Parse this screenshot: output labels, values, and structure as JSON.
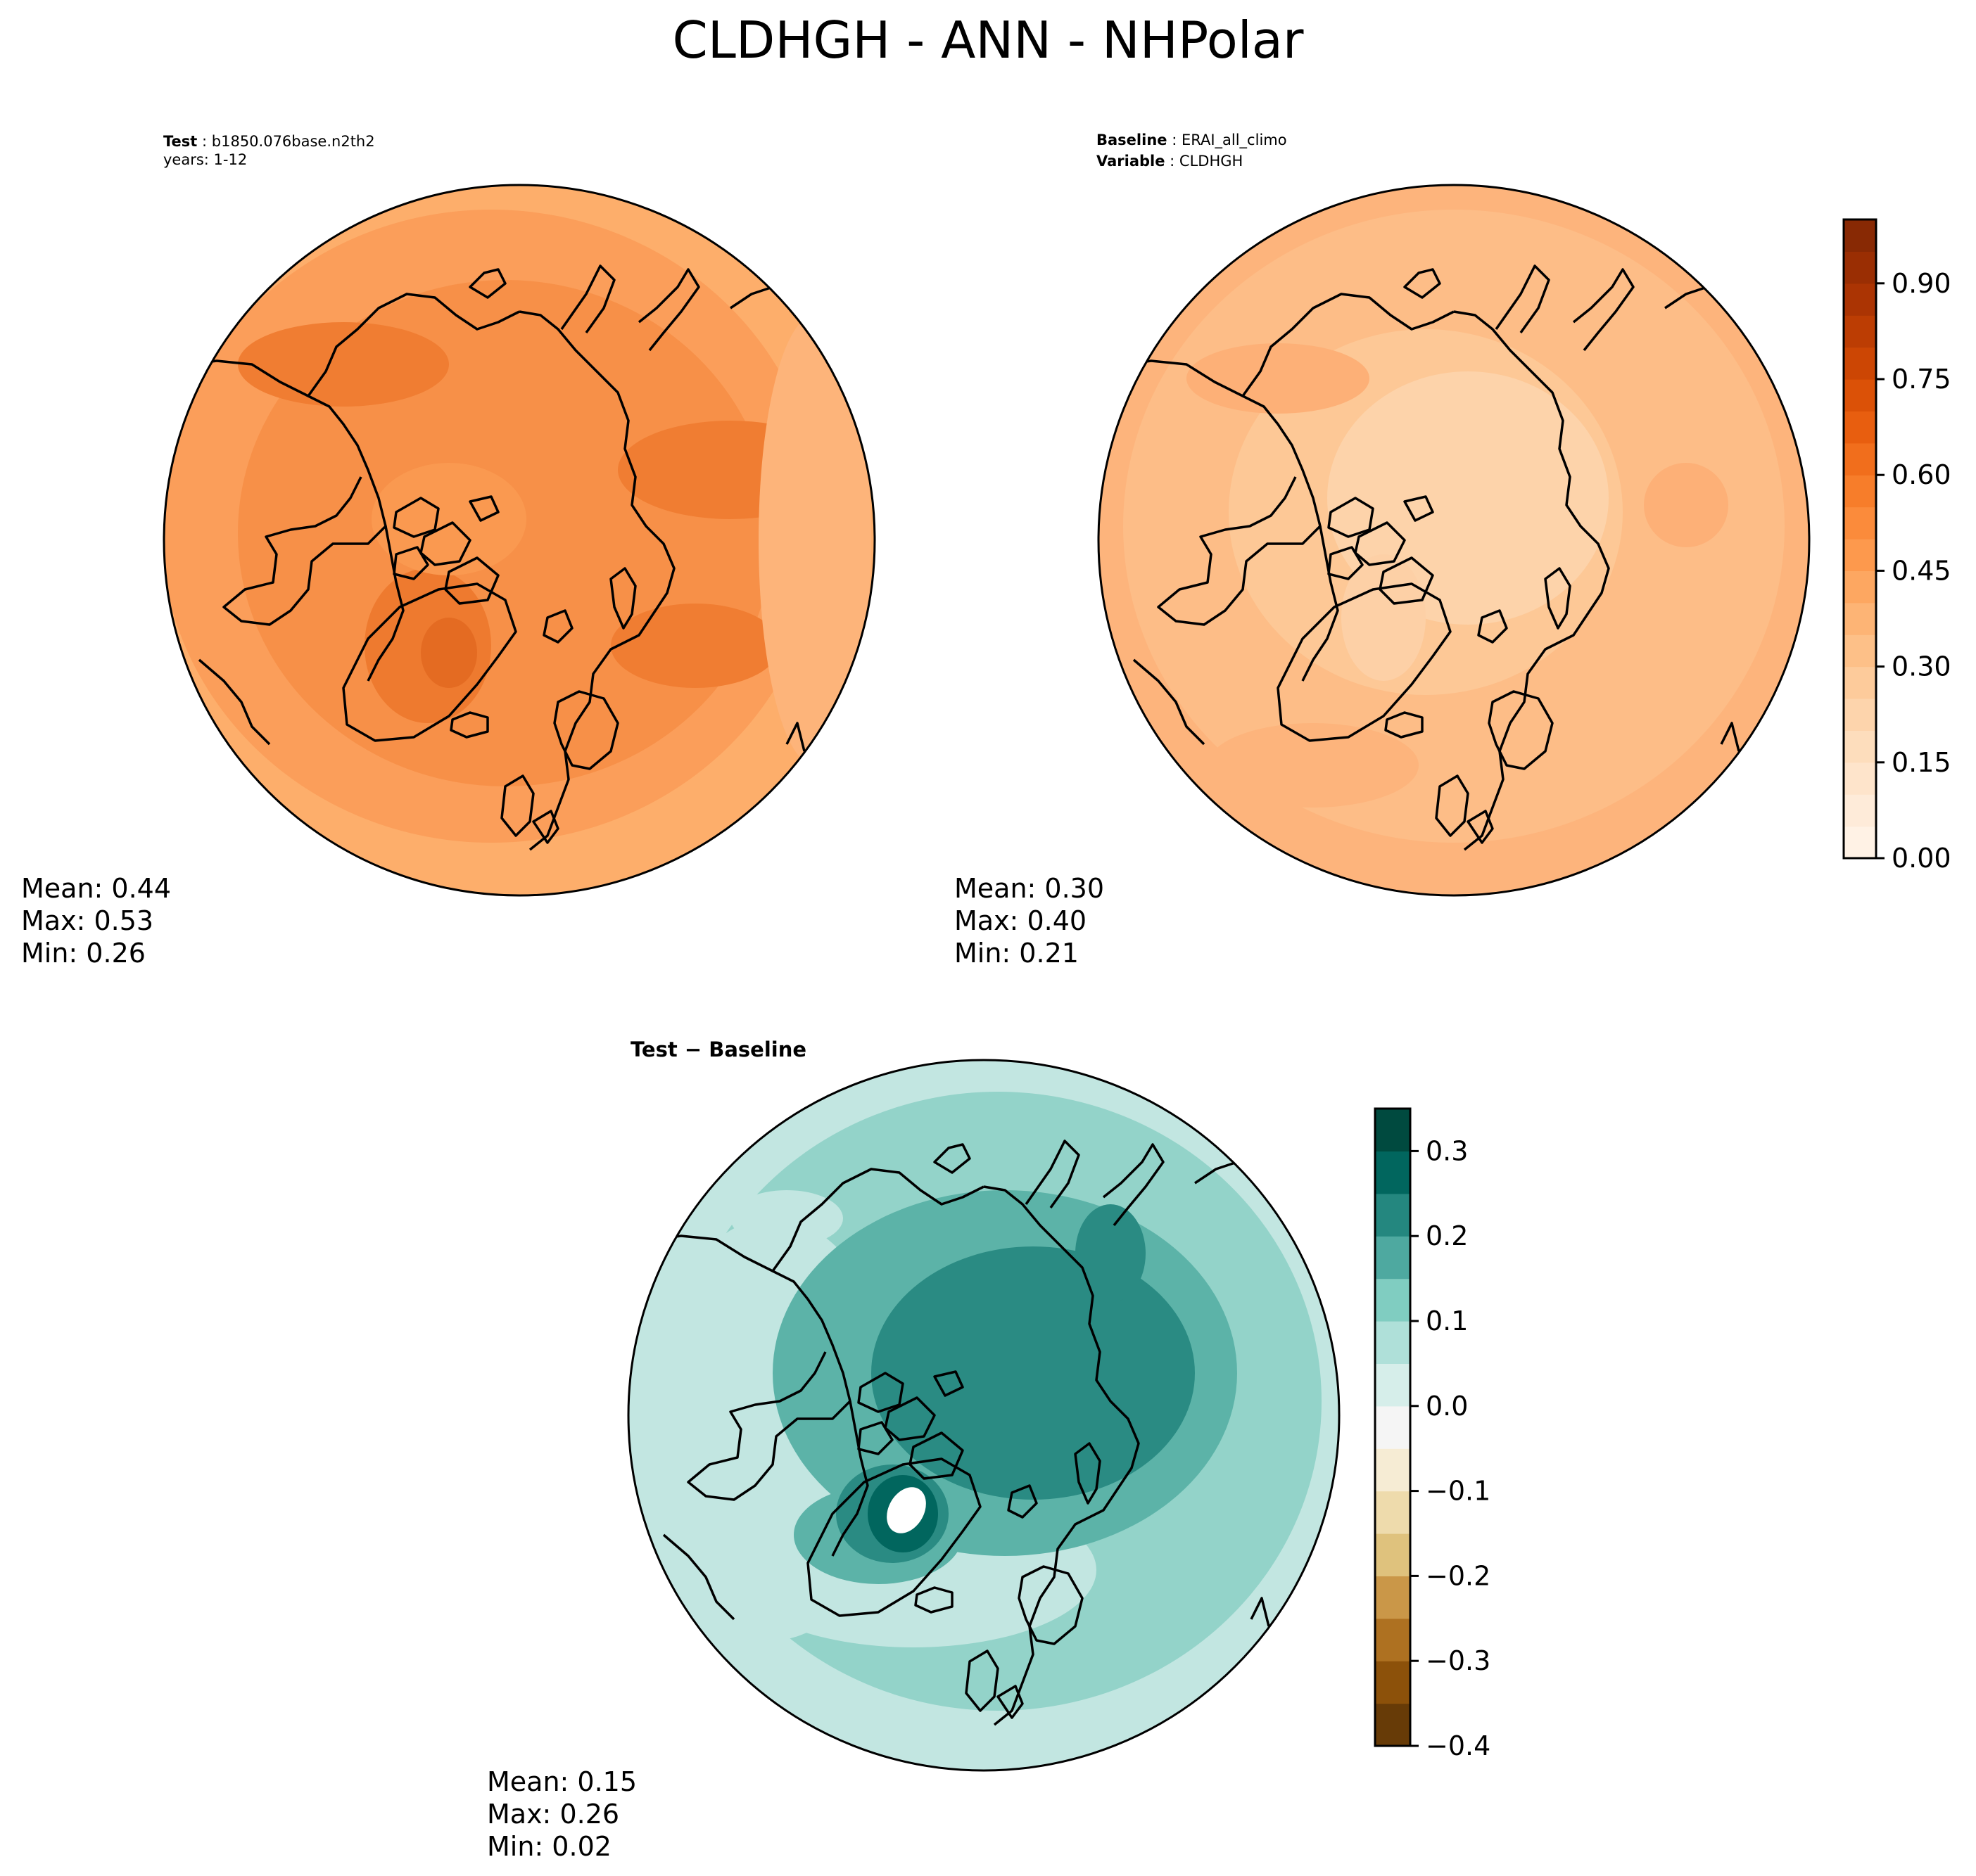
{
  "figure": {
    "title": "CLDHGH - ANN - NHPolar"
  },
  "test_panel": {
    "label_bold": "Test",
    "label_value": "b1850.076base.n2th2",
    "subline": "years: 1-12",
    "stats": {
      "mean": "Mean:  0.44",
      "max": "Max:  0.53",
      "min": "Min:  0.26"
    }
  },
  "baseline_panel": {
    "line1_bold": "Baseline",
    "line1_value": "ERAI_all_climo",
    "line2_bold": "Variable",
    "line2_value": "CLDHGH",
    "stats": {
      "mean": "Mean:  0.30",
      "max": "Max:  0.40",
      "min": "Min:  0.21"
    }
  },
  "diff_panel": {
    "title": "Test − Baseline",
    "stats": {
      "mean": "Mean:  0.15",
      "max": "Max:  0.26",
      "min": "Min:  0.02"
    }
  },
  "colors": {
    "oranges": [
      "#fff5eb",
      "#fee8d3",
      "#fdd9b4",
      "#fdc692",
      "#fdae6b",
      "#fd9243",
      "#f57622",
      "#e35608",
      "#c44103",
      "#a33003",
      "#7f2704"
    ],
    "brbg": [
      "#543005",
      "#8c510a",
      "#bf812d",
      "#dfc27d",
      "#f6e8c3",
      "#f5f5f5",
      "#c7eae5",
      "#80cdc1",
      "#35978f",
      "#01665e",
      "#003c30"
    ],
    "test_fill": "#f8994f",
    "baseline_fill": "#fdc28c",
    "diff_fill": "#9bd5cc"
  },
  "colorbars": {
    "top": {
      "ticks": [
        "0.00",
        "0.15",
        "0.30",
        "0.45",
        "0.60",
        "0.75",
        "0.90"
      ],
      "range": [
        0,
        1.0
      ]
    },
    "bottom": {
      "ticks": [
        "−0.4",
        "−0.3",
        "−0.2",
        "−0.1",
        "0.0",
        "0.1",
        "0.2",
        "0.3"
      ],
      "range": [
        -0.4,
        0.35
      ]
    }
  },
  "chart_data": [
    {
      "type": "heatmap",
      "projection": "north polar stereographic",
      "variable": "CLDHGH",
      "label": "Test: b1850.076base.n2th2, years: 1-12",
      "mean": 0.44,
      "max": 0.53,
      "min": 0.26,
      "colormap": "Oranges",
      "colorbar_range": [
        0.0,
        1.0
      ],
      "colorbar_ticks": [
        0.0,
        0.15,
        0.3,
        0.45,
        0.6,
        0.75,
        0.9
      ]
    },
    {
      "type": "heatmap",
      "projection": "north polar stereographic",
      "variable": "CLDHGH",
      "label": "Baseline: ERAI_all_climo",
      "mean": 0.3,
      "max": 0.4,
      "min": 0.21,
      "colormap": "Oranges",
      "colorbar_range": [
        0.0,
        1.0
      ],
      "colorbar_ticks": [
        0.0,
        0.15,
        0.3,
        0.45,
        0.6,
        0.75,
        0.9
      ]
    },
    {
      "type": "heatmap",
      "projection": "north polar stereographic",
      "variable": "CLDHGH",
      "label": "Test − Baseline",
      "mean": 0.15,
      "max": 0.26,
      "min": 0.02,
      "colormap": "BrBG",
      "colorbar_range": [
        -0.4,
        0.35
      ],
      "colorbar_ticks": [
        -0.4,
        -0.3,
        -0.2,
        -0.1,
        0.0,
        0.1,
        0.2,
        0.3
      ]
    }
  ]
}
